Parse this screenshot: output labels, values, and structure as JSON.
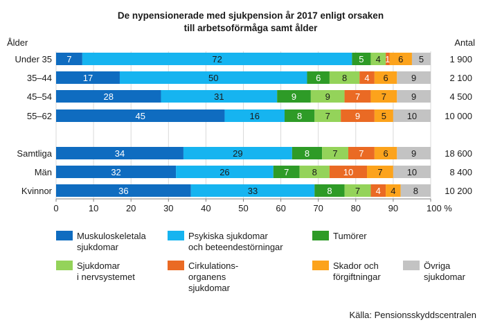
{
  "chart_data": {
    "type": "bar",
    "stacked": true,
    "orientation": "horizontal",
    "title_lines": [
      "De nypensionerade med sjukpension år 2017 enligt orsaken",
      "till arbetsoförmåga samt ålder"
    ],
    "row_header": "Ålder",
    "count_header": "Antal",
    "xlim": [
      0,
      100
    ],
    "x_ticks": [
      "0",
      "10",
      "20",
      "30",
      "40",
      "50",
      "60",
      "70",
      "80",
      "90",
      "100 %"
    ],
    "grid": true,
    "groups": [
      {
        "rows": [
          {
            "label": "Under 35",
            "count": "1 900"
          },
          {
            "label": "35–44",
            "count": "2 100"
          },
          {
            "label": "45–54",
            "count": "4 500"
          },
          {
            "label": "55–62",
            "count": "10 000"
          }
        ]
      },
      {
        "rows": [
          {
            "label": "Samtliga",
            "count": "18 600"
          },
          {
            "label": "Män",
            "count": "8 400"
          },
          {
            "label": "Kvinnor",
            "count": "10 200"
          }
        ]
      }
    ],
    "series": [
      {
        "name": "Muskuloskeletala sjukdomar",
        "legend_lines": [
          "Muskuloskeletala",
          "sjukdomar"
        ],
        "color": "#0f6cc0",
        "label_color": "#ffffff",
        "values": [
          7,
          17,
          28,
          45,
          34,
          32,
          36
        ]
      },
      {
        "name": "Psykiska sjukdomar och beteendestörningar",
        "legend_lines": [
          "Psykiska sjukdomar",
          "och beteendestörningar"
        ],
        "color": "#16b4f0",
        "label_color": "#1a1a1a",
        "values": [
          72,
          50,
          31,
          16,
          29,
          26,
          33
        ]
      },
      {
        "name": "Tumörer",
        "legend_lines": [
          "Tumörer"
        ],
        "color": "#2e9b27",
        "label_color": "#ffffff",
        "values": [
          5,
          6,
          9,
          8,
          8,
          7,
          8
        ]
      },
      {
        "name": "Sjukdomar i nervsystemet",
        "legend_lines": [
          "Sjukdomar",
          "i nervsystemet"
        ],
        "color": "#94d35a",
        "label_color": "#1a1a1a",
        "values": [
          4,
          8,
          9,
          7,
          7,
          8,
          7
        ]
      },
      {
        "name": "Cirkulationsorganens sjukdomar",
        "legend_lines": [
          "Cirkulations-",
          "organens",
          "sjukdomar"
        ],
        "color": "#ea6a24",
        "label_color": "#ffffff",
        "values": [
          1,
          4,
          7,
          9,
          7,
          10,
          4
        ]
      },
      {
        "name": "Skador och förgiftningar",
        "legend_lines": [
          "Skador och",
          "förgiftningar"
        ],
        "color": "#fca31c",
        "label_color": "#1a1a1a",
        "values": [
          6,
          6,
          7,
          5,
          6,
          7,
          4
        ]
      },
      {
        "name": "Övriga sjukdomar",
        "legend_lines": [
          "Övriga",
          "sjukdomar"
        ],
        "color": "#c3c3c3",
        "label_color": "#1a1a1a",
        "values": [
          5,
          9,
          9,
          10,
          9,
          10,
          8
        ]
      }
    ],
    "source": "Källa: Pensionsskyddscentralen"
  }
}
